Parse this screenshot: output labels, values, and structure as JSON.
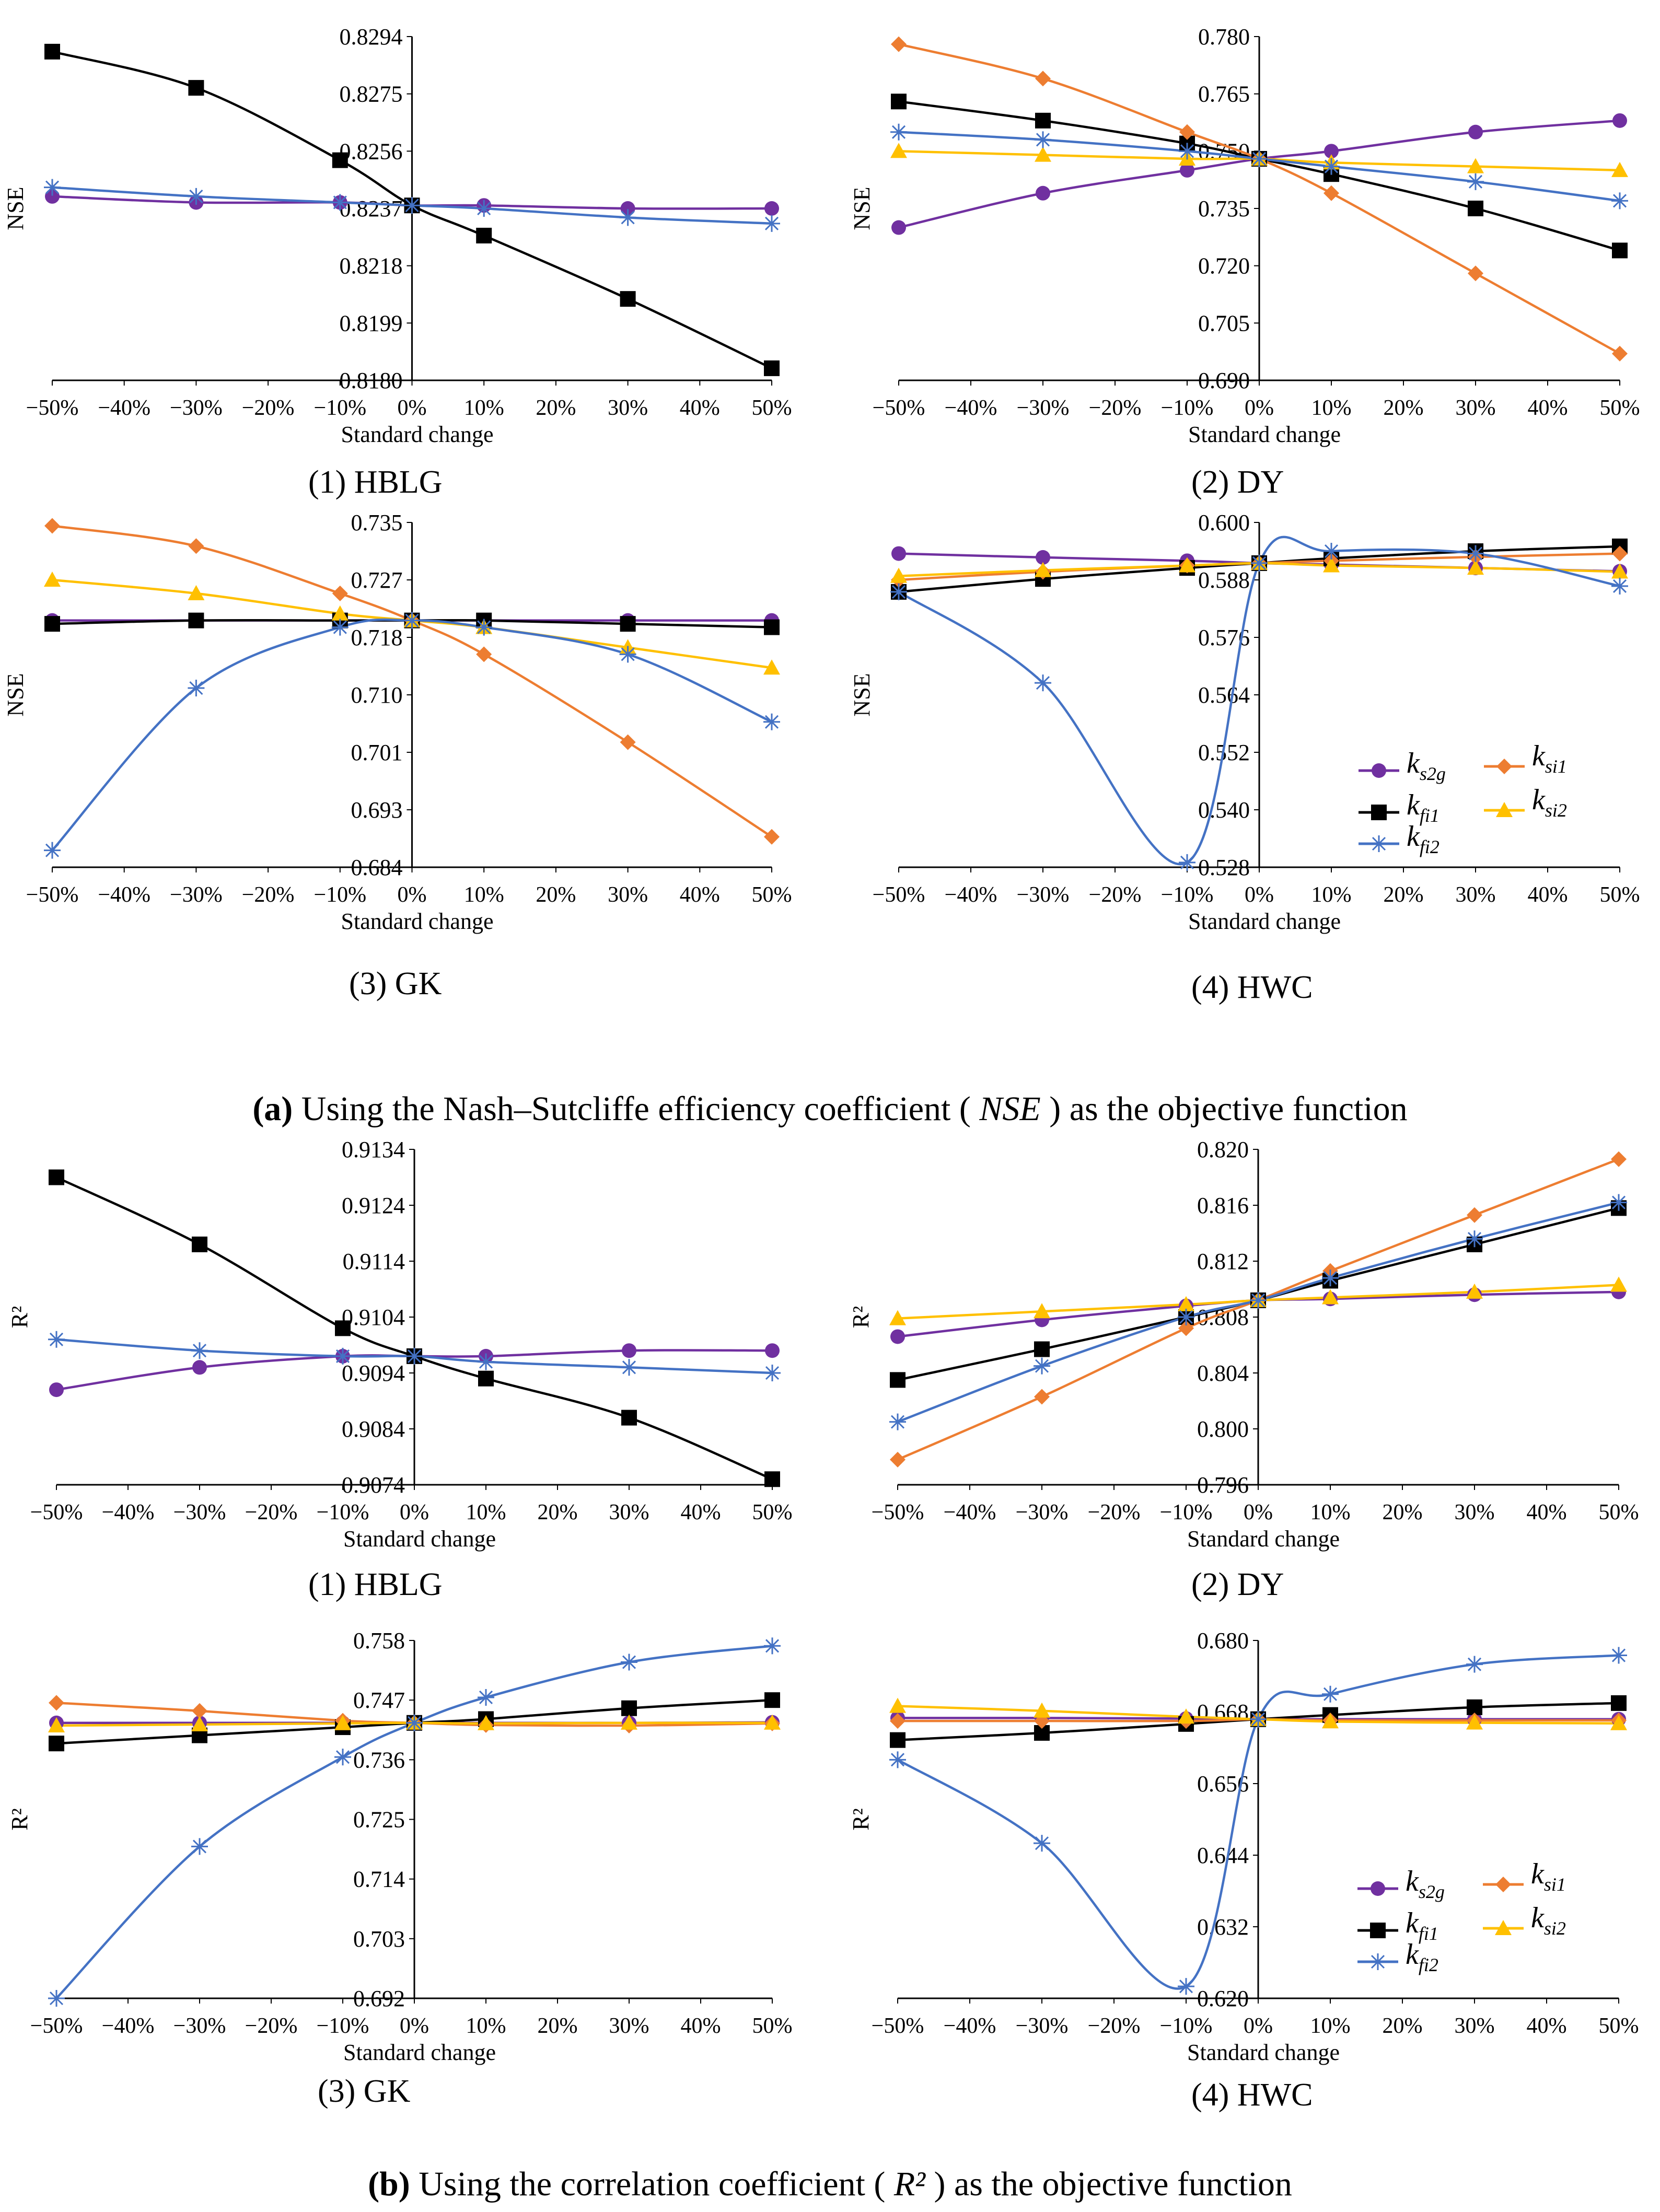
{
  "colors": {
    "ks2g": "#7030A0",
    "kfi1": "#000000",
    "kfi2": "#4472C4",
    "ksi1": "#ED7D31",
    "ksi2": "#FFC000",
    "axis": "#000000",
    "text": "#000000"
  },
  "markers": {
    "ks2g": "circle",
    "kfi1": "square",
    "kfi2": "star",
    "ksi1": "diamond",
    "ksi2": "triangle"
  },
  "legend_labels": {
    "ks2g": {
      "main": "k",
      "sub": "s2g"
    },
    "kfi1": {
      "main": "k",
      "sub": "fi1"
    },
    "kfi2": {
      "main": "k",
      "sub": "fi2"
    },
    "ksi1": {
      "main": "k",
      "sub": "si1"
    },
    "ksi2": {
      "main": "k",
      "sub": "si2"
    }
  },
  "sections": {
    "a": {
      "letter": "(a)",
      "text_before": " Using the Nash–Sutcliffe efficiency coefficient ( ",
      "symbol": "NSE",
      "text_after": " ) as the objective function"
    },
    "b": {
      "letter": "(b)",
      "text_before": " Using the correlation coefficient ( ",
      "symbol": "R²",
      "text_after": " ) as the objective function"
    }
  },
  "chart_data": [
    {
      "id": "a1",
      "type": "line",
      "caption": "(1) HBLG",
      "ylabel": "NSE",
      "xlabel": "Standard change",
      "categories": [
        "−50%",
        "−40%",
        "−30%",
        "−20%",
        "−10%",
        "0%",
        "10%",
        "20%",
        "30%",
        "40%",
        "50%"
      ],
      "x": [
        -50,
        -30,
        -10,
        0,
        10,
        30,
        50
      ],
      "xlim": [
        -50,
        50
      ],
      "ylim": [
        0.818,
        0.8294
      ],
      "yticks": [
        "0.8180",
        "0.8199",
        "0.8218",
        "0.8237",
        "0.8256",
        "0.8275",
        "0.8294"
      ],
      "series": [
        {
          "key": "ks2g",
          "values": [
            0.8241,
            0.8239,
            0.8239,
            0.8238,
            0.8238,
            0.8237,
            0.8237
          ]
        },
        {
          "key": "kfi1",
          "values": [
            0.8289,
            0.8277,
            0.8253,
            0.8238,
            0.8228,
            0.8207,
            0.8184
          ]
        },
        {
          "key": "kfi2",
          "values": [
            0.8244,
            0.8241,
            0.8239,
            0.8238,
            0.8237,
            0.8234,
            0.8232
          ]
        }
      ],
      "legend": false
    },
    {
      "id": "a2",
      "type": "line",
      "caption": "(2) DY",
      "ylabel": "NSE",
      "xlabel": "Standard change",
      "categories": [
        "−50%",
        "−40%",
        "−30%",
        "−20%",
        "−10%",
        "0%",
        "10%",
        "20%",
        "30%",
        "40%",
        "50%"
      ],
      "x": [
        -50,
        -30,
        -10,
        0,
        10,
        30,
        50
      ],
      "xlim": [
        -50,
        50
      ],
      "ylim": [
        0.69,
        0.78
      ],
      "yticks": [
        "0.690",
        "0.705",
        "0.720",
        "0.735",
        "0.750",
        "0.765",
        "0.780"
      ],
      "series": [
        {
          "key": "ks2g",
          "values": [
            0.73,
            0.739,
            0.745,
            0.748,
            0.75,
            0.755,
            0.758
          ]
        },
        {
          "key": "kfi1",
          "values": [
            0.763,
            0.758,
            0.752,
            0.748,
            0.744,
            0.735,
            0.724
          ]
        },
        {
          "key": "kfi2",
          "values": [
            0.755,
            0.753,
            0.75,
            0.748,
            0.746,
            0.742,
            0.737
          ]
        },
        {
          "key": "ksi1",
          "values": [
            0.778,
            0.769,
            0.755,
            0.748,
            0.739,
            0.718,
            0.697
          ]
        },
        {
          "key": "ksi2",
          "values": [
            0.75,
            0.749,
            0.748,
            0.748,
            0.747,
            0.746,
            0.745
          ]
        }
      ],
      "legend": false
    },
    {
      "id": "a3",
      "type": "line",
      "caption": "(3) GK",
      "ylabel": "NSE",
      "xlabel": "Standard change",
      "categories": [
        "−50%",
        "−40%",
        "−30%",
        "−20%",
        "−10%",
        "0%",
        "10%",
        "20%",
        "30%",
        "40%",
        "50%"
      ],
      "x": [
        -50,
        -30,
        -10,
        0,
        10,
        30,
        50
      ],
      "xlim": [
        -50,
        50
      ],
      "ylim": [
        0.684,
        0.735
      ],
      "yticks": [
        "0.684",
        "0.693",
        "0.701",
        "0.710",
        "0.718",
        "0.727",
        "0.735"
      ],
      "series": [
        {
          "key": "ks2g",
          "values": [
            0.7205,
            0.7205,
            0.7205,
            0.7205,
            0.7205,
            0.7205,
            0.7205
          ]
        },
        {
          "key": "kfi1",
          "values": [
            0.72,
            0.7205,
            0.7205,
            0.7205,
            0.7205,
            0.72,
            0.7195
          ]
        },
        {
          "key": "kfi2",
          "values": [
            0.6865,
            0.7105,
            0.7195,
            0.7205,
            0.7195,
            0.7155,
            0.7055
          ]
        },
        {
          "key": "ksi1",
          "values": [
            0.7345,
            0.7315,
            0.7245,
            0.7205,
            0.7155,
            0.7025,
            0.6885
          ]
        },
        {
          "key": "ksi2",
          "values": [
            0.7265,
            0.7245,
            0.7215,
            0.7205,
            0.7195,
            0.7165,
            0.7135
          ]
        }
      ],
      "legend": false
    },
    {
      "id": "a4",
      "type": "line",
      "caption": "(4) HWC",
      "ylabel": "NSE",
      "xlabel": "Standard change",
      "categories": [
        "−50%",
        "−40%",
        "−30%",
        "−20%",
        "−10%",
        "0%",
        "10%",
        "20%",
        "30%",
        "40%",
        "50%"
      ],
      "x": [
        -50,
        -30,
        -10,
        0,
        10,
        30,
        50
      ],
      "xlim": [
        -50,
        50
      ],
      "ylim": [
        0.528,
        0.6
      ],
      "yticks": [
        "0.528",
        "0.540",
        "0.552",
        "0.564",
        "0.576",
        "0.588",
        "0.600"
      ],
      "series": [
        {
          "key": "ks2g",
          "values": [
            0.5935,
            0.5927,
            0.592,
            0.5915,
            0.5912,
            0.5905,
            0.5898
          ]
        },
        {
          "key": "kfi1",
          "values": [
            0.5855,
            0.5882,
            0.5905,
            0.5915,
            0.5925,
            0.594,
            0.595
          ]
        },
        {
          "key": "kfi2",
          "values": [
            0.5855,
            0.5665,
            0.529,
            0.5915,
            0.594,
            0.5935,
            0.5867
          ]
        },
        {
          "key": "ksi1",
          "values": [
            0.588,
            0.5897,
            0.591,
            0.5915,
            0.592,
            0.5928,
            0.5935
          ]
        },
        {
          "key": "ksi2",
          "values": [
            0.5888,
            0.59,
            0.591,
            0.5915,
            0.591,
            0.5905,
            0.5897
          ]
        }
      ],
      "legend": true
    },
    {
      "id": "b1",
      "type": "line",
      "caption": "(1) HBLG",
      "ylabel": "R²",
      "xlabel": "Standard change",
      "categories": [
        "−50%",
        "−40%",
        "−30%",
        "−20%",
        "−10%",
        "0%",
        "10%",
        "20%",
        "30%",
        "40%",
        "50%"
      ],
      "x": [
        -50,
        -30,
        -10,
        0,
        10,
        30,
        50
      ],
      "xlim": [
        -50,
        50
      ],
      "ylim": [
        0.9074,
        0.9134
      ],
      "yticks": [
        "0.9074",
        "0.9084",
        "0.9094",
        "0.9104",
        "0.9114",
        "0.9124",
        "0.9134"
      ],
      "series": [
        {
          "key": "ks2g",
          "values": [
            0.9091,
            0.9095,
            0.9097,
            0.9097,
            0.9097,
            0.9098,
            0.9098
          ]
        },
        {
          "key": "kfi1",
          "values": [
            0.9129,
            0.9117,
            0.9102,
            0.9097,
            0.9093,
            0.9086,
            0.9075
          ]
        },
        {
          "key": "kfi2",
          "values": [
            0.91,
            0.9098,
            0.9097,
            0.9097,
            0.9096,
            0.9095,
            0.9094
          ]
        }
      ],
      "legend": false
    },
    {
      "id": "b2",
      "type": "line",
      "caption": "(2) DY",
      "ylabel": "R²",
      "xlabel": "Standard change",
      "categories": [
        "−50%",
        "−40%",
        "−30%",
        "−20%",
        "−10%",
        "0%",
        "10%",
        "20%",
        "30%",
        "40%",
        "50%"
      ],
      "x": [
        -50,
        -30,
        -10,
        0,
        10,
        30,
        50
      ],
      "xlim": [
        -50,
        50
      ],
      "ylim": [
        0.796,
        0.82
      ],
      "yticks": [
        "0.796",
        "0.800",
        "0.804",
        "0.808",
        "0.812",
        "0.816",
        "0.820"
      ],
      "series": [
        {
          "key": "ks2g",
          "values": [
            0.8066,
            0.8078,
            0.8088,
            0.8092,
            0.8093,
            0.8096,
            0.8098
          ]
        },
        {
          "key": "kfi1",
          "values": [
            0.8035,
            0.8057,
            0.808,
            0.8092,
            0.8106,
            0.8132,
            0.8158
          ]
        },
        {
          "key": "kfi2",
          "values": [
            0.8005,
            0.8045,
            0.808,
            0.8092,
            0.8108,
            0.8136,
            0.8162
          ]
        },
        {
          "key": "ksi1",
          "values": [
            0.7978,
            0.8023,
            0.8072,
            0.8092,
            0.8113,
            0.8153,
            0.8193
          ]
        },
        {
          "key": "ksi2",
          "values": [
            0.8079,
            0.8084,
            0.8089,
            0.8092,
            0.8094,
            0.8098,
            0.8103
          ]
        }
      ],
      "legend": false
    },
    {
      "id": "b3",
      "type": "line",
      "caption": "(3) GK",
      "ylabel": "R²",
      "xlabel": "Standard change",
      "categories": [
        "−50%",
        "−40%",
        "−30%",
        "−20%",
        "−10%",
        "0%",
        "10%",
        "20%",
        "30%",
        "40%",
        "50%"
      ],
      "x": [
        -50,
        -30,
        -10,
        0,
        10,
        30,
        50
      ],
      "xlim": [
        -50,
        50
      ],
      "ylim": [
        0.692,
        0.758
      ],
      "yticks": [
        "0.692",
        "0.703",
        "0.714",
        "0.725",
        "0.736",
        "0.747",
        "0.758"
      ],
      "series": [
        {
          "key": "ks2g",
          "values": [
            0.7428,
            0.7428,
            0.7428,
            0.7428,
            0.7428,
            0.7428,
            0.7429
          ]
        },
        {
          "key": "kfi1",
          "values": [
            0.739,
            0.7405,
            0.742,
            0.7428,
            0.7435,
            0.7455,
            0.747
          ]
        },
        {
          "key": "kfi2",
          "values": [
            0.692,
            0.72,
            0.7365,
            0.7428,
            0.7475,
            0.754,
            0.757
          ]
        },
        {
          "key": "ksi1",
          "values": [
            0.7465,
            0.745,
            0.7432,
            0.7428,
            0.7424,
            0.7423,
            0.7427
          ]
        },
        {
          "key": "ksi2",
          "values": [
            0.7423,
            0.7425,
            0.7427,
            0.7428,
            0.7427,
            0.7428,
            0.7428
          ]
        }
      ],
      "legend": false
    },
    {
      "id": "b4",
      "type": "line",
      "caption": "(4) HWC",
      "ylabel": "R²",
      "xlabel": "Standard change",
      "categories": [
        "−50%",
        "−40%",
        "−30%",
        "−20%",
        "−10%",
        "0%",
        "10%",
        "20%",
        "30%",
        "40%",
        "50%"
      ],
      "x": [
        -50,
        -30,
        -10,
        0,
        10,
        30,
        50
      ],
      "xlim": [
        -50,
        50
      ],
      "ylim": [
        0.62,
        0.68
      ],
      "yticks": [
        "0.620",
        "0.632",
        "0.644",
        "0.656",
        "0.668",
        "0.680"
      ],
      "series": [
        {
          "key": "ks2g",
          "values": [
            0.667,
            0.667,
            0.6669,
            0.6668,
            0.6668,
            0.6668,
            0.6668
          ]
        },
        {
          "key": "kfi1",
          "values": [
            0.6633,
            0.6645,
            0.666,
            0.6668,
            0.6675,
            0.6688,
            0.6695
          ]
        },
        {
          "key": "kfi2",
          "values": [
            0.66,
            0.646,
            0.622,
            0.6668,
            0.671,
            0.676,
            0.6775
          ]
        },
        {
          "key": "ksi1",
          "values": [
            0.6665,
            0.6665,
            0.6665,
            0.6668,
            0.6666,
            0.6666,
            0.6666
          ]
        },
        {
          "key": "ksi2",
          "values": [
            0.669,
            0.6682,
            0.6672,
            0.6668,
            0.6664,
            0.6662,
            0.6661
          ]
        }
      ],
      "legend": true
    }
  ]
}
